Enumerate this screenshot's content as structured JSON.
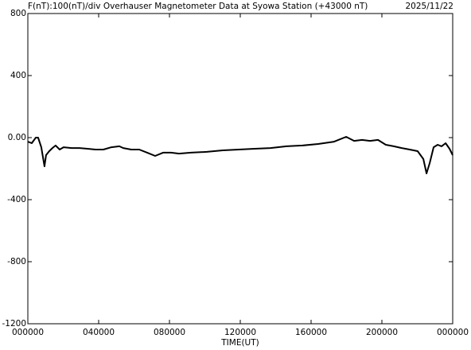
{
  "chart_data": {
    "type": "line",
    "title": "F(nT):100(nT)/div  Overhauser Magnetometer Data at Syowa Station (+43000 nT)",
    "date": "2025/11/22",
    "x_label": "TIME(UT)",
    "x": [
      0,
      0.22,
      0.45,
      0.58,
      0.76,
      0.94,
      1.03,
      1.21,
      1.39,
      1.57,
      1.8,
      2.02,
      2.47,
      2.92,
      3.37,
      3.82,
      4.27,
      4.72,
      5.17,
      5.39,
      5.84,
      6.29,
      6.74,
      7.19,
      7.64,
      8.09,
      8.54,
      9.21,
      10.11,
      11.01,
      11.91,
      12.81,
      13.71,
      14.61,
      15.51,
      16.4,
      17.3,
      17.98,
      18.43,
      18.88,
      19.33,
      19.78,
      20.22,
      20.67,
      21.12,
      21.57,
      22.02,
      22.34,
      22.52,
      22.7,
      22.92,
      23.15,
      23.37,
      23.6,
      23.82,
      24
    ],
    "series": [
      {
        "color": "#000000",
        "values": [
          -26,
          -36,
          0,
          0,
          -62,
          -185,
          -113,
          -87,
          -67,
          -51,
          -77,
          -62,
          -67,
          -67,
          -72,
          -77,
          -77,
          -62,
          -56,
          -67,
          -77,
          -77,
          -97,
          -118,
          -97,
          -97,
          -103,
          -97,
          -92,
          -82,
          -77,
          -72,
          -67,
          -56,
          -51,
          -41,
          -26,
          5,
          -21,
          -15,
          -21,
          -15,
          -46,
          -56,
          -67,
          -77,
          -87,
          -138,
          -231,
          -164,
          -62,
          -46,
          -56,
          -36,
          -72,
          -113
        ]
      }
    ],
    "xlim": [
      0,
      24
    ],
    "xticks": [
      {
        "value": 0,
        "label": "000000"
      },
      {
        "value": 4,
        "label": "040000"
      },
      {
        "value": 8,
        "label": "080000"
      },
      {
        "value": 12,
        "label": "120000"
      },
      {
        "value": 16,
        "label": "160000"
      },
      {
        "value": 20,
        "label": "200000"
      },
      {
        "value": 24,
        "label": "000000"
      }
    ],
    "ylim": [
      -1200,
      800
    ],
    "yticks": [
      800,
      400,
      {
        "value": 0,
        "label": "0.00"
      },
      -400,
      -800,
      -1200
    ]
  }
}
